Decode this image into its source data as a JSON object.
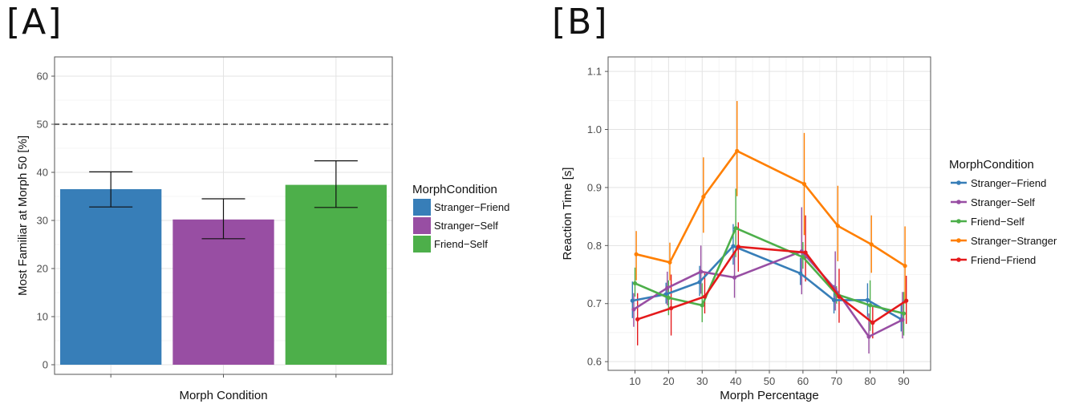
{
  "panel_a_label": "[A]",
  "panel_b_label": "[B]",
  "chart_data": [
    {
      "type": "bar",
      "categories": [
        "Stranger−Friend",
        "Stranger−Self",
        "Friend−Self"
      ],
      "values": [
        36.5,
        30.2,
        37.4
      ],
      "error_low": [
        32.8,
        26.2,
        32.7
      ],
      "error_high": [
        40.1,
        34.5,
        42.4
      ],
      "colors": [
        "#377eb8",
        "#984ea3",
        "#4daf4a"
      ],
      "xlabel": "Morph Condition",
      "ylabel": "Most Familiar at Morph 50 [%]",
      "ylim": [
        -2,
        64
      ],
      "yticks": [
        0,
        10,
        20,
        30,
        40,
        50,
        60
      ],
      "reference_line": 50,
      "legend_title": "MorphCondition",
      "legend_position": "right",
      "grid": true
    },
    {
      "type": "line",
      "x": [
        10,
        20,
        30,
        40,
        60,
        70,
        80,
        90
      ],
      "xticks": [
        10,
        20,
        30,
        40,
        50,
        60,
        70,
        80,
        90
      ],
      "xlabel": "Morph Percentage",
      "ylabel": "Reaction Time [s]",
      "xlim": [
        2,
        98
      ],
      "ylim": [
        0.585,
        1.125
      ],
      "yticks": [
        0.6,
        0.7,
        0.8,
        0.9,
        1.0,
        1.1
      ],
      "ytick_labels": [
        "0.6",
        "0.7",
        "0.8",
        "0.9",
        "1.0",
        "1.1"
      ],
      "legend_title": "MorphCondition",
      "legend_position": "right",
      "grid": true,
      "series": [
        {
          "name": "Stranger−Friend",
          "color": "#377eb8",
          "values": [
            0.705,
            0.716,
            0.737,
            0.799,
            0.752,
            0.706,
            0.706,
            0.673
          ],
          "error_low": [
            0.675,
            0.7,
            0.713,
            0.767,
            0.732,
            0.683,
            0.677,
            0.652
          ],
          "error_high": [
            0.738,
            0.736,
            0.765,
            0.837,
            0.779,
            0.732,
            0.735,
            0.7
          ]
        },
        {
          "name": "Stranger−Self",
          "color": "#984ea3",
          "values": [
            0.69,
            0.727,
            0.755,
            0.745,
            0.79,
            0.725,
            0.643,
            0.672
          ],
          "error_low": [
            0.66,
            0.697,
            0.717,
            0.71,
            0.716,
            0.688,
            0.614,
            0.64
          ],
          "error_high": [
            0.718,
            0.755,
            0.8,
            0.788,
            0.866,
            0.79,
            0.683,
            0.72
          ]
        },
        {
          "name": "Friend−Self",
          "color": "#4daf4a",
          "values": [
            0.735,
            0.71,
            0.697,
            0.83,
            0.78,
            0.716,
            0.697,
            0.683
          ],
          "error_low": [
            0.712,
            0.68,
            0.668,
            0.78,
            0.76,
            0.7,
            0.653,
            0.645
          ],
          "error_high": [
            0.762,
            0.74,
            0.735,
            0.898,
            0.806,
            0.73,
            0.74,
            0.72
          ]
        },
        {
          "name": "Stranger−Stranger",
          "color": "#ff7f00",
          "values": [
            0.785,
            0.771,
            0.884,
            0.963,
            0.906,
            0.834,
            0.802,
            0.765
          ],
          "error_low": [
            0.74,
            0.74,
            0.822,
            0.885,
            0.818,
            0.773,
            0.753,
            0.7
          ],
          "error_high": [
            0.825,
            0.805,
            0.952,
            1.049,
            0.994,
            0.903,
            0.852,
            0.833
          ]
        },
        {
          "name": "Friend−Friend",
          "color": "#e41a1c",
          "values": [
            0.673,
            0.692,
            0.712,
            0.798,
            0.788,
            0.712,
            0.667,
            0.705
          ],
          "error_low": [
            0.628,
            0.645,
            0.683,
            0.755,
            0.738,
            0.667,
            0.64,
            0.665
          ],
          "error_high": [
            0.718,
            0.75,
            0.752,
            0.84,
            0.852,
            0.76,
            0.695,
            0.748
          ]
        }
      ]
    }
  ]
}
